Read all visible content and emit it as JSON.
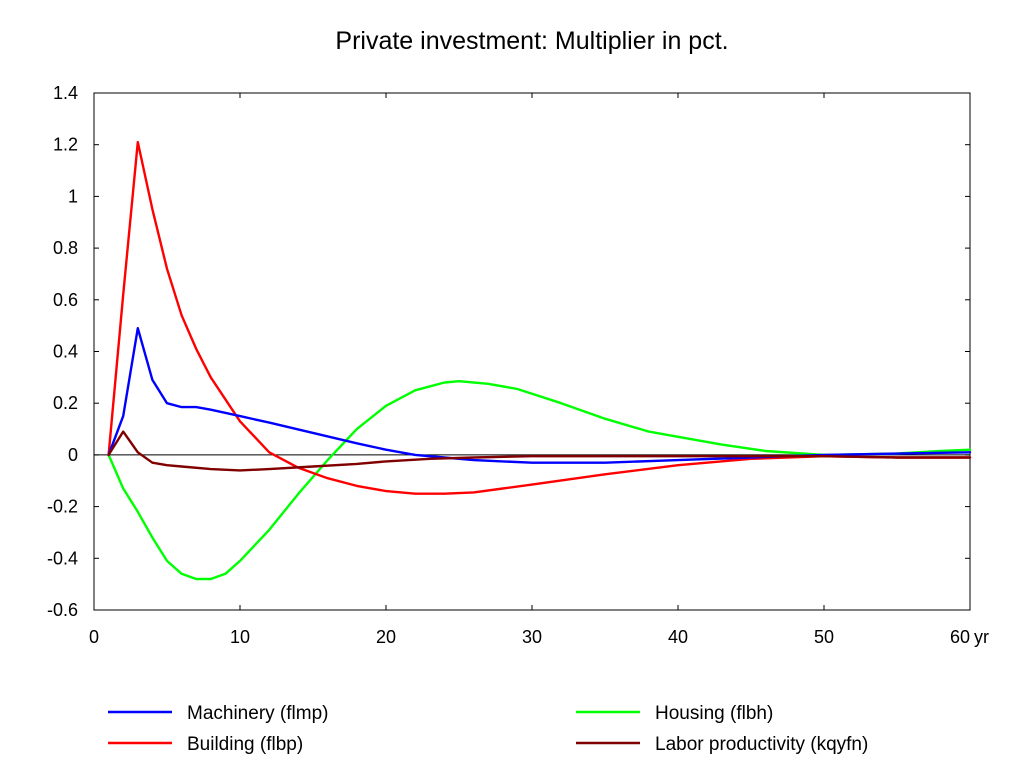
{
  "chart_data": {
    "type": "line",
    "title": "Private investment: Multiplier in pct.",
    "xlabel": "",
    "ylabel": "",
    "x_unit_label": "yr",
    "xlim": [
      0,
      60
    ],
    "ylim": [
      -0.6,
      1.4
    ],
    "xticks": [
      0,
      10,
      20,
      30,
      40,
      50,
      60
    ],
    "yticks": [
      -0.6,
      -0.4,
      -0.2,
      0,
      0.2,
      0.4,
      0.6,
      0.8,
      1,
      1.2,
      1.4
    ],
    "xtick_labels": [
      "0",
      "10",
      "20",
      "30",
      "40",
      "50",
      "60"
    ],
    "ytick_labels": [
      "-0.6",
      "-0.4",
      "-0.2",
      "0",
      "0.2",
      "0.4",
      "0.6",
      "0.8",
      "1",
      "1.2",
      "1.4"
    ],
    "grid": false,
    "zero_line": true,
    "legend_position": "bottom",
    "series": [
      {
        "name": "Machinery (flmp)",
        "color": "#0000ff",
        "x": [
          1,
          2,
          3,
          4,
          5,
          6,
          7,
          8,
          10,
          12,
          15,
          18,
          20,
          22,
          24,
          26,
          28,
          30,
          35,
          40,
          45,
          50,
          55,
          60
        ],
        "y": [
          0,
          0.15,
          0.49,
          0.29,
          0.2,
          0.185,
          0.185,
          0.175,
          0.15,
          0.125,
          0.085,
          0.045,
          0.02,
          0.0,
          -0.01,
          -0.02,
          -0.025,
          -0.03,
          -0.03,
          -0.02,
          -0.01,
          0.0,
          0.005,
          0.01
        ]
      },
      {
        "name": "Building (flbp)",
        "color": "#ff0000",
        "x": [
          1,
          2,
          3,
          4,
          5,
          6,
          7,
          8,
          10,
          12,
          14,
          16,
          18,
          20,
          22,
          24,
          26,
          28,
          30,
          35,
          40,
          45,
          50,
          55,
          60
        ],
        "y": [
          0,
          0.62,
          1.21,
          0.95,
          0.72,
          0.54,
          0.41,
          0.3,
          0.13,
          0.01,
          -0.05,
          -0.09,
          -0.12,
          -0.14,
          -0.15,
          -0.15,
          -0.145,
          -0.13,
          -0.115,
          -0.075,
          -0.04,
          -0.015,
          -0.005,
          -0.01,
          -0.01
        ]
      },
      {
        "name": "Housing (flbh)",
        "color": "#00ff00",
        "x": [
          1,
          2,
          3,
          4,
          5,
          6,
          7,
          8,
          9,
          10,
          12,
          14,
          16,
          18,
          20,
          22,
          24,
          25,
          27,
          29,
          32,
          35,
          38,
          40,
          43,
          46,
          50,
          55,
          58,
          60
        ],
        "y": [
          0,
          -0.13,
          -0.22,
          -0.32,
          -0.41,
          -0.46,
          -0.48,
          -0.48,
          -0.46,
          -0.41,
          -0.29,
          -0.15,
          -0.02,
          0.1,
          0.19,
          0.25,
          0.28,
          0.285,
          0.275,
          0.255,
          0.2,
          0.14,
          0.09,
          0.07,
          0.04,
          0.015,
          0.0,
          0.005,
          0.015,
          0.02
        ]
      },
      {
        "name": "Labor productivity (kqyfn)",
        "color": "#800000",
        "x": [
          1,
          2,
          3,
          4,
          5,
          6,
          8,
          10,
          12,
          15,
          18,
          20,
          23,
          26,
          30,
          35,
          40,
          45,
          50,
          55,
          60
        ],
        "y": [
          0,
          0.09,
          0.01,
          -0.03,
          -0.04,
          -0.045,
          -0.055,
          -0.06,
          -0.055,
          -0.045,
          -0.035,
          -0.025,
          -0.015,
          -0.01,
          -0.005,
          -0.005,
          -0.005,
          -0.005,
          -0.005,
          -0.01,
          -0.01
        ]
      }
    ]
  }
}
